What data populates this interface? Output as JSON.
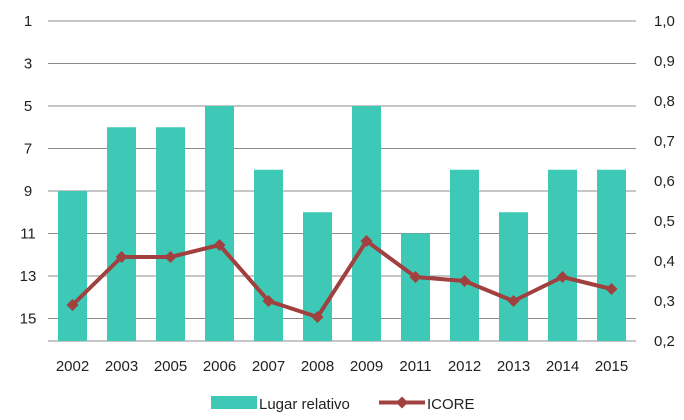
{
  "chart_data": {
    "type": "bar",
    "categories": [
      "2002",
      "2003",
      "2005",
      "2006",
      "2007",
      "2008",
      "2009",
      "2011",
      "2012",
      "2013",
      "2014",
      "2015"
    ],
    "series": [
      {
        "name": "Lugar relativo",
        "type": "bar",
        "axis": "left",
        "color": "#3ec9b7",
        "values": [
          9,
          6,
          6,
          5,
          8,
          10,
          5,
          11,
          8,
          10,
          8,
          8
        ]
      },
      {
        "name": "ICORE",
        "type": "line",
        "axis": "right",
        "color": "#a0403f",
        "marker": "diamond",
        "values": [
          0.29,
          0.41,
          0.41,
          0.44,
          0.3,
          0.26,
          0.45,
          0.36,
          0.35,
          0.3,
          0.36,
          0.33
        ]
      }
    ],
    "y_left": {
      "reversed": true,
      "ylim": [
        16,
        1
      ],
      "ticks": [
        "1",
        "3",
        "5",
        "7",
        "9",
        "11",
        "13",
        "15"
      ]
    },
    "y_right": {
      "ylim": [
        0.2,
        1.0
      ],
      "ticks": [
        "1,0",
        "0,9",
        "0,8",
        "0,7",
        "0,6",
        "0,5",
        "0,4",
        "0,3",
        "0,2"
      ]
    },
    "grid": true,
    "legend": {
      "position": "bottom",
      "items": [
        "Lugar relativo",
        "ICORE"
      ]
    }
  }
}
